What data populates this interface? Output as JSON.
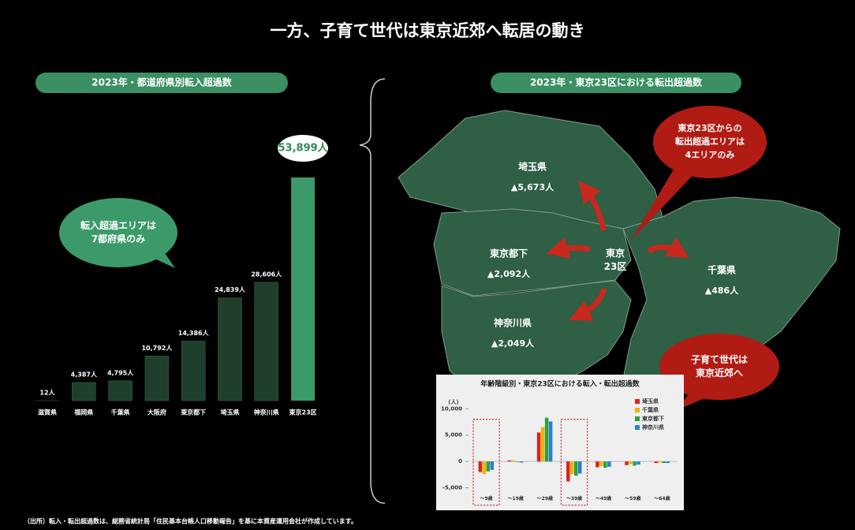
{
  "title": "一方、子育て世代は東京近郊へ転居の動き",
  "footnote": "（出所）転入・転出超過数は、総務省統計局「住民基本台帳人口移動報告」を基に本資産運用会社が作成しています。",
  "chart_data": [
    {
      "type": "bar",
      "title": "2023年・都道府県別転入超過数",
      "categories": [
        "滋賀県",
        "福岡県",
        "千葉県",
        "大阪府",
        "東京都下",
        "埼玉県",
        "神奈川県",
        "東京23区"
      ],
      "values": [
        12,
        4387,
        4795,
        10792,
        14386,
        24839,
        28606,
        53899
      ],
      "value_labels": [
        "12人",
        "4,387人",
        "4,795人",
        "10,792人",
        "14,386人",
        "24,839人",
        "28,606人",
        "53,899人"
      ],
      "colors": [
        "#1f3f2c",
        "#1f3f2c",
        "#1f3f2c",
        "#1f3f2c",
        "#1f3f2c",
        "#1f3f2c",
        "#1f3f2c",
        "#3c9a6a"
      ],
      "annotation": [
        "転入超過エリアは",
        "7都府県のみ"
      ]
    },
    {
      "type": "grouped_bar",
      "title": "年齢階級別・東京23区における転入・転出超過数",
      "ylabel": "(人)",
      "categories": [
        "～9歳",
        "～19歳",
        "～29歳",
        "～39歳",
        "～49歳",
        "～59歳",
        "～64歳"
      ],
      "series": [
        {
          "name": "埼玉県",
          "color": "#e02020",
          "values": [
            -2000,
            200,
            5500,
            -3800,
            -1100,
            -700,
            -300
          ]
        },
        {
          "name": "千葉県",
          "color": "#f0b400",
          "values": [
            -2400,
            200,
            6500,
            -2400,
            -900,
            -500,
            -200
          ]
        },
        {
          "name": "東京都下",
          "color": "#2ea040",
          "values": [
            -1900,
            -100,
            8300,
            -2700,
            -1200,
            -800,
            -300
          ]
        },
        {
          "name": "神奈川県",
          "color": "#2a7fd0",
          "values": [
            -1600,
            -200,
            7600,
            -2300,
            -1000,
            -600,
            -300
          ]
        }
      ],
      "ylim": [
        -6500,
        11000
      ],
      "yticks": [
        {
          "value": 10000,
          "label": "10,000"
        },
        {
          "value": 5000,
          "label": "5,000"
        },
        0,
        {
          "value": -5000,
          "label": "-5,000"
        }
      ],
      "highlight": [
        0,
        3
      ]
    }
  ],
  "map": {
    "title": "2023年・東京23区における転出超過数",
    "center": [
      "東京",
      "23区"
    ],
    "regions": [
      {
        "name": "埼玉県",
        "value": "▲5,673人"
      },
      {
        "name": "東京都下",
        "value": "▲2,092人"
      },
      {
        "name": "神奈川県",
        "value": "▲2,049人"
      },
      {
        "name": "千葉県",
        "value": "▲486人"
      }
    ]
  },
  "callouts": [
    [
      "東京23区からの",
      "転出超過エリアは",
      "4エリアのみ"
    ],
    [
      "子育て世代は",
      "東京近郊へ"
    ]
  ]
}
